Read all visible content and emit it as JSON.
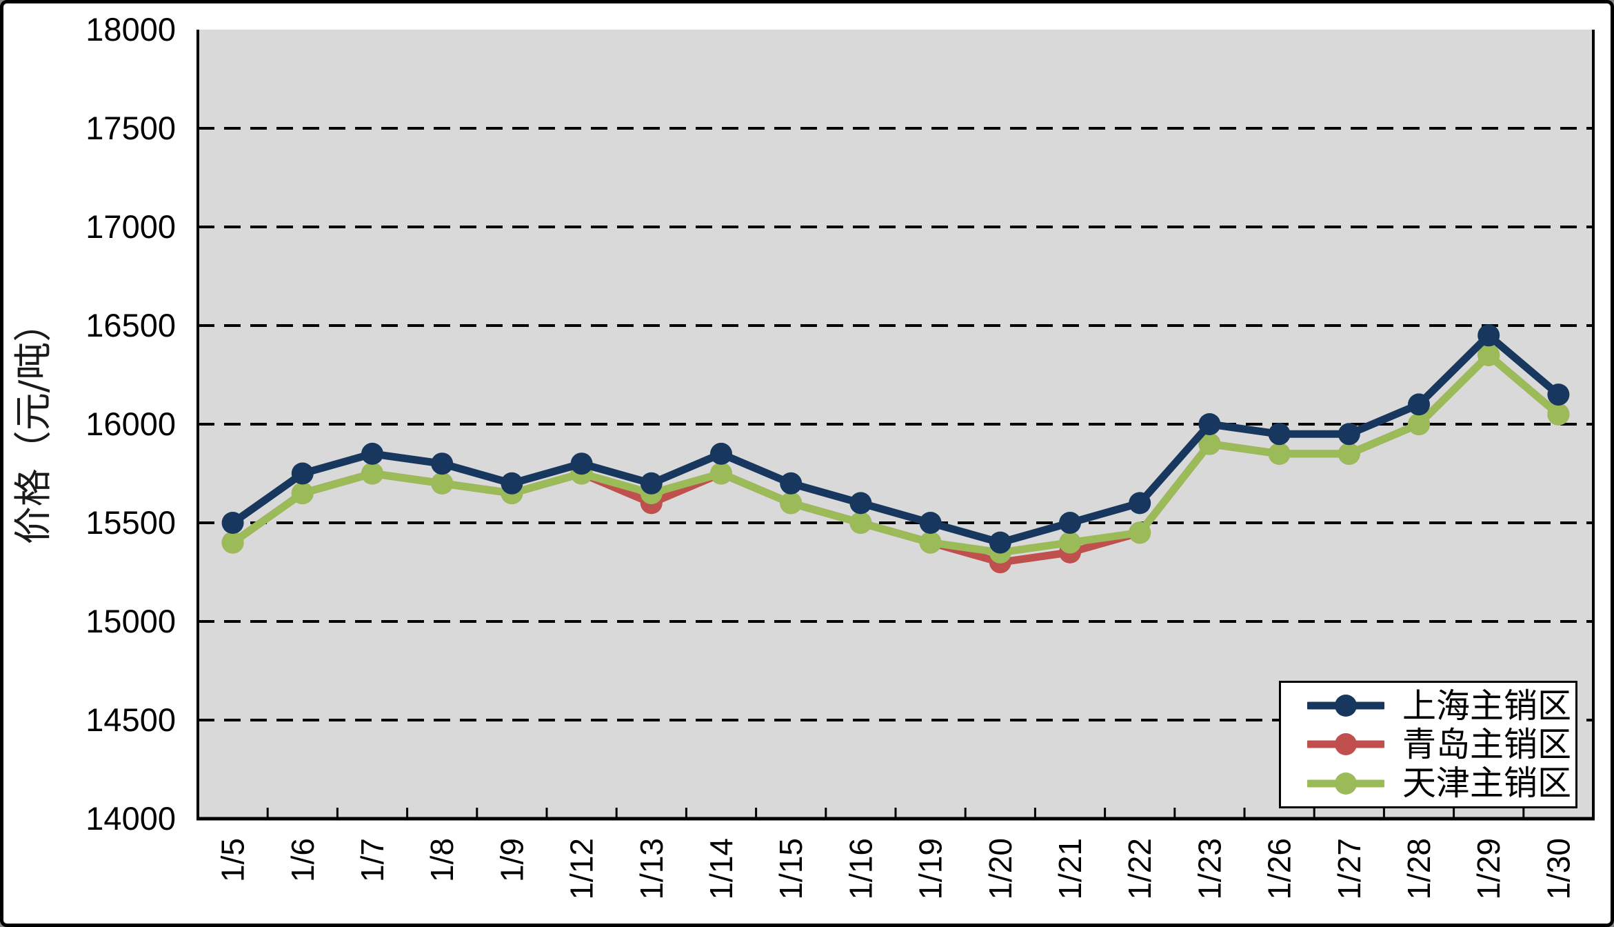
{
  "y_axis_title": "价格（元/吨）",
  "chart_data": {
    "type": "line",
    "title": "",
    "xlabel": "",
    "ylabel": "价格（元/吨）",
    "ylim": [
      14000,
      18000
    ],
    "ytick_step": 500,
    "y_tick_labels": [
      "18000",
      "17500",
      "17000",
      "16500",
      "16000",
      "15500",
      "15000",
      "14500",
      "14000"
    ],
    "grid": "horizontal-dashed",
    "plot_bg": "#D9D9D9",
    "legend_position": "bottom-right",
    "categories": [
      "1/5",
      "1/6",
      "1/7",
      "1/8",
      "1/9",
      "1/12",
      "1/13",
      "1/14",
      "1/15",
      "1/16",
      "1/19",
      "1/20",
      "1/21",
      "1/22",
      "1/23",
      "1/26",
      "1/27",
      "1/28",
      "1/29",
      "1/30"
    ],
    "series": [
      {
        "name": "上海主销区",
        "color": "#17375E",
        "values": [
          15500,
          15750,
          15850,
          15800,
          15700,
          15800,
          15700,
          15850,
          15700,
          15600,
          15500,
          15400,
          15500,
          15600,
          16000,
          15950,
          15950,
          16100,
          16450,
          16150
        ]
      },
      {
        "name": "青岛主销区",
        "color": "#C0504D",
        "values": [
          15400,
          15650,
          15750,
          15700,
          15650,
          15750,
          15600,
          15750,
          15600,
          15500,
          15400,
          15300,
          15350,
          15450,
          15900,
          15850,
          15850,
          16000,
          16350,
          16050
        ]
      },
      {
        "name": "天津主销区",
        "color": "#9BBB59",
        "values": [
          15400,
          15650,
          15750,
          15700,
          15650,
          15750,
          15650,
          15750,
          15600,
          15500,
          15400,
          15350,
          15400,
          15450,
          15900,
          15850,
          15850,
          16000,
          16350,
          16050
        ]
      }
    ]
  }
}
